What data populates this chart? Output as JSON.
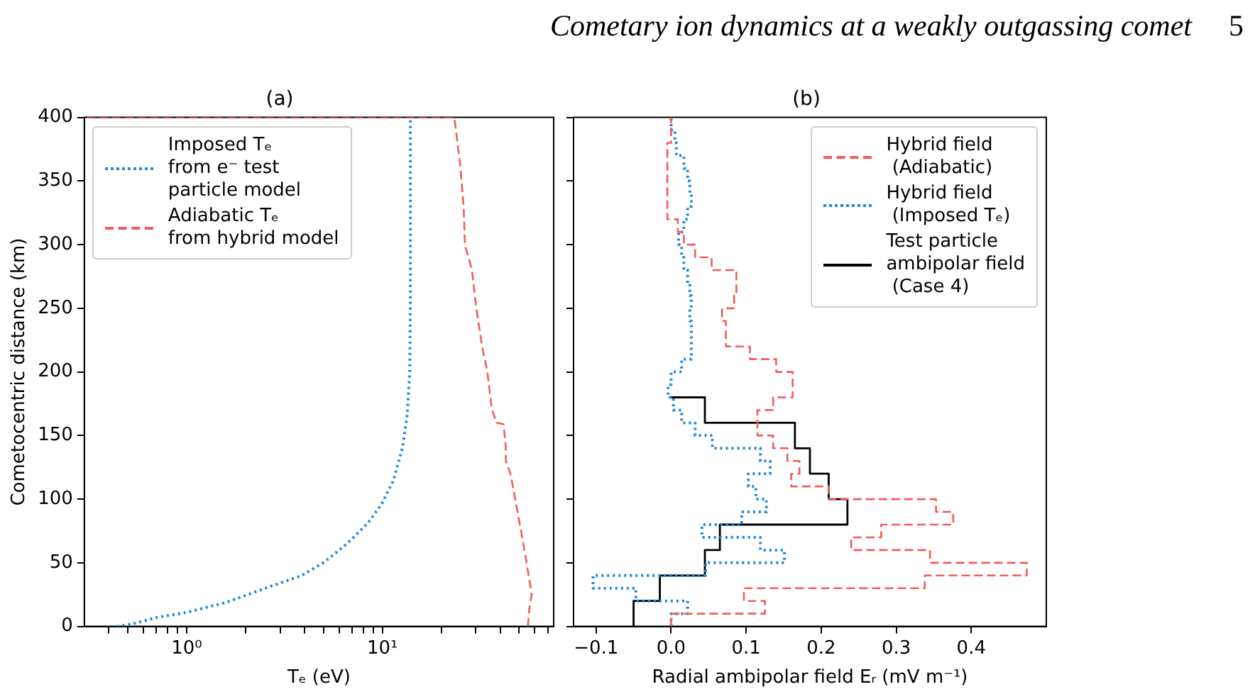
{
  "chart_data": [
    {
      "type": "line",
      "title": "(a)",
      "xlabel": "Tₑ (eV)",
      "ylabel": "Cometocentric distance (km)",
      "annotations": [
        "Cometary ion dynamics at a weakly outgassing comet",
        "5"
      ],
      "log": "x",
      "xlim": [
        0.31,
        75
      ],
      "xticks": [
        {
          "value": 0.4,
          "label": null
        },
        {
          "value": 0.5,
          "label": null
        },
        {
          "value": 0.6,
          "label": null
        },
        {
          "value": 0.7,
          "label": null
        },
        {
          "value": 0.8,
          "label": null
        },
        {
          "value": 0.9,
          "label": null
        },
        {
          "value": 1,
          "label": "10⁰"
        },
        {
          "value": 2,
          "label": null
        },
        {
          "value": 3,
          "label": null
        },
        {
          "value": 4,
          "label": null
        },
        {
          "value": 5,
          "label": null
        },
        {
          "value": 6,
          "label": null
        },
        {
          "value": 7,
          "label": null
        },
        {
          "value": 8,
          "label": null
        },
        {
          "value": 9,
          "label": null
        },
        {
          "value": 10,
          "label": "10¹"
        },
        {
          "value": 20,
          "label": null
        },
        {
          "value": 30,
          "label": null
        },
        {
          "value": 40,
          "label": null
        },
        {
          "value": 50,
          "label": null
        },
        {
          "value": 60,
          "label": null
        },
        {
          "value": 70,
          "label": null
        }
      ],
      "ylim": [
        0,
        400
      ],
      "yticks": [
        0,
        50,
        100,
        150,
        200,
        250,
        300,
        350,
        400
      ],
      "legend": "top left",
      "marker": "none",
      "series": [
        {
          "name": "Imposed Tₑ\nfrom e⁻ test\nparticle model",
          "color": "#1f88d8",
          "line_style": "dotted",
          "x": [
            0.44,
            0.53,
            0.7,
            1.0,
            1.6,
            2.63,
            3.87,
            5.1,
            6.7,
            8.4,
            9.9,
            11.4,
            12.7,
            13.4,
            13.8,
            13.9,
            13.9
          ],
          "values": [
            0,
            2,
            7,
            11,
            19,
            31,
            40,
            51,
            66,
            81,
            96,
            115,
            141,
            167,
            201,
            260,
            400
          ]
        },
        {
          "name": "Adiabatic Tₑ\nfrom hybrid model",
          "color": "#f45b5b",
          "line_style": "dashed",
          "x": [
            55.4,
            56.3,
            57.9,
            56.3,
            53.3,
            50.4,
            47.7,
            45.1,
            42.7,
            42.7,
            41.6,
            38.3,
            36.2,
            34.3,
            32.4,
            30.2,
            28.6,
            26.4,
            26,
            25,
            23.3,
            0.31
          ],
          "values": [
            0,
            14,
            25,
            37,
            59,
            80,
            100,
            120,
            130,
            141,
            159,
            160,
            171,
            201,
            219,
            250,
            281,
            300,
            330,
            362,
            400,
            400
          ]
        }
      ]
    },
    {
      "type": "line",
      "title": "(b)",
      "xlabel": "Radial ambipolar field Eᵣ (mV m⁻¹)",
      "xlim": [
        -0.13,
        0.5
      ],
      "xticks": [
        {
          "value": -0.1,
          "label": "−0.1"
        },
        {
          "value": 0,
          "label": "0.0"
        },
        {
          "value": 0.1,
          "label": "0.1"
        },
        {
          "value": 0.2,
          "label": "0.2"
        },
        {
          "value": 0.3,
          "label": "0.3"
        },
        {
          "value": 0.4,
          "label": "0.4"
        }
      ],
      "ylim": [
        0,
        400
      ],
      "yticks": [
        0,
        50,
        100,
        150,
        200,
        250,
        300,
        350,
        400
      ],
      "tick_labels": "x",
      "legend": "top right",
      "marker": "none",
      "series": [
        {
          "name": "Hybrid field\n (Adiabatic)",
          "color": "#f45b5b",
          "line_style": "dashed",
          "x": [
            0,
            0,
            0.125,
            0.125,
            0.097,
            0.097,
            0.338,
            0.338,
            0.474,
            0.474,
            0.345,
            0.345,
            0.24,
            0.24,
            0.28,
            0.28,
            0.376,
            0.376,
            0.353,
            0.353,
            0.21,
            0.21,
            0.16,
            0.16,
            0.171,
            0.171,
            0.155,
            0.155,
            0.136,
            0.136,
            0.115,
            0.115,
            0.136,
            0.136,
            0.162,
            0.162,
            0.14,
            0.14,
            0.105,
            0.105,
            0.073,
            0.073,
            0.068,
            0.068,
            0.084,
            0.084,
            0.087,
            0.087,
            0.054,
            0.054,
            0.032,
            0.032,
            0.017,
            0.017,
            0.009,
            0.009,
            -0.005,
            -0.005,
            0,
            0
          ],
          "values": [
            0,
            10,
            10,
            20,
            20,
            30,
            30,
            40,
            40,
            50,
            50,
            60,
            60,
            70,
            70,
            80,
            80,
            90,
            90,
            100,
            100,
            110,
            110,
            120,
            120,
            130,
            130,
            140,
            140,
            150,
            150,
            170,
            170,
            180,
            180,
            200,
            200,
            210,
            210,
            220,
            220,
            240,
            240,
            250,
            250,
            260,
            260,
            280,
            280,
            290,
            290,
            300,
            300,
            310,
            310,
            320,
            320,
            380,
            380,
            400
          ]
        },
        {
          "name": "Hybrid field\n (Imposed Tₑ)",
          "color": "#1f88d8",
          "line_style": "dotted",
          "x": [
            0,
            0,
            0.022,
            0.022,
            -0.047,
            -0.047,
            -0.104,
            -0.104,
            0.046,
            0.046,
            0.151,
            0.151,
            0.119,
            0.119,
            0.041,
            0.041,
            0.094,
            0.094,
            0.127,
            0.127,
            0.113,
            0.113,
            0.103,
            0.103,
            0.132,
            0.132,
            0.119,
            0.119,
            0.055,
            0.055,
            0.032,
            0.032,
            0.014,
            0.014,
            0.003,
            0.003,
            -0.004,
            -0.004,
            0,
            0,
            0.014,
            0.014,
            0.027,
            0.027,
            0.025,
            0.025,
            0.027,
            0.027,
            0.025,
            0.025,
            0.022,
            0.022,
            0.017,
            0.017,
            0.014,
            0.014,
            0.01,
            0.01,
            0.017,
            0.017,
            0.022,
            0.022,
            0.027,
            0.027,
            0.025,
            0.025,
            0.022,
            0.022,
            0.017,
            0.017,
            0.007,
            0.007,
            0.005,
            0.005,
            0,
            0
          ],
          "values": [
            0,
            10,
            10,
            20,
            20,
            30,
            30,
            40,
            40,
            50,
            50,
            60,
            60,
            70,
            70,
            80,
            80,
            90,
            90,
            100,
            100,
            110,
            110,
            120,
            120,
            130,
            130,
            140,
            140,
            150,
            150,
            160,
            160,
            170,
            170,
            180,
            180,
            190,
            190,
            200,
            200,
            210,
            210,
            240,
            240,
            250,
            250,
            260,
            260,
            270,
            270,
            280,
            280,
            290,
            290,
            300,
            300,
            310,
            310,
            320,
            320,
            330,
            330,
            340,
            340,
            350,
            350,
            360,
            360,
            370,
            370,
            380,
            380,
            390,
            390,
            400
          ]
        },
        {
          "name": "Test particle\nambipolar field\n (Case 4)",
          "color": "#000000",
          "line_style": "solid",
          "x": [
            -0.05,
            -0.05,
            -0.015,
            -0.015,
            0.045,
            0.045,
            0.065,
            0.065,
            0.235,
            0.235,
            0.21,
            0.21,
            0.185,
            0.185,
            0.165,
            0.165,
            0.045,
            0.045,
            0
          ],
          "values": [
            0,
            20,
            20,
            40,
            40,
            60,
            60,
            80,
            80,
            100,
            100,
            120,
            120,
            140,
            140,
            160,
            160,
            180,
            180
          ]
        }
      ]
    }
  ]
}
